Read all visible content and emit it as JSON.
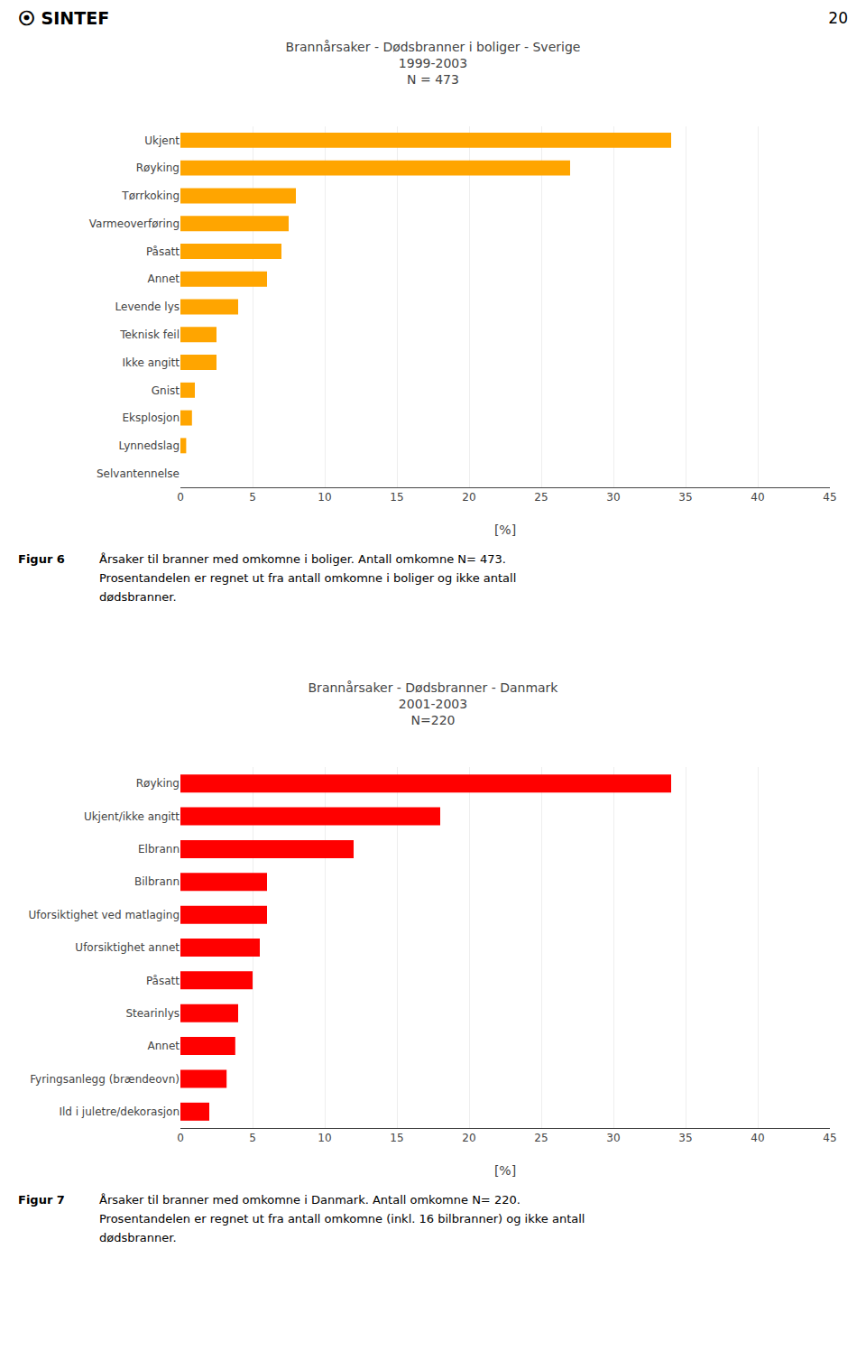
{
  "annotations": [
    "⦿ SINTEF",
    "20"
  ],
  "chart_data": [
    {
      "type": "bar",
      "orientation": "horizontal",
      "title": "Brannårsaker - Dødsbranner i boliger - Sverige\n1999-2003\nN = 473",
      "categories": [
        "Ukjent",
        "Røyking",
        "Tørrkoking",
        "Varmeoverføring",
        "Påsatt",
        "Annet",
        "Levende lys",
        "Teknisk feil",
        "Ikke angitt",
        "Gnist",
        "Eksplosjon",
        "Lynnedslag",
        "Selvantennelse"
      ],
      "values": [
        34,
        27,
        8,
        7.5,
        7,
        6,
        4,
        2.5,
        2.5,
        1,
        0.8,
        0.4,
        0.0
      ],
      "color": "#FFA500",
      "xlabel": "[%]",
      "xlim": [
        0,
        45
      ],
      "xticks": [
        0,
        5,
        10,
        15,
        20,
        25,
        30,
        35,
        40,
        45
      ],
      "grid": true,
      "annotations": [
        "Figur 6",
        "Årsaker til branner med omkomne i boliger. Antall omkomne N= 473.",
        "Prosentandelen er regnet ut fra antall omkomne i boliger og ikke antall",
        "dødsbranner."
      ]
    },
    {
      "type": "bar",
      "orientation": "horizontal",
      "title": "Brannårsaker - Dødsbranner - Danmark\n2001-2003\nN=220",
      "categories": [
        "Røyking",
        "Ukjent/ikke angitt",
        "Elbrann",
        "Bilbrann",
        "Uforsiktighet ved matlaging",
        "Uforsiktighet annet",
        "Påsatt",
        "Stearinlys",
        "Annet",
        "Fyringsanlegg (brændeovn)",
        "Ild i juletre/dekorasjon"
      ],
      "values": [
        34,
        18,
        12,
        6,
        6,
        5.5,
        5,
        4,
        3.8,
        3.2,
        2
      ],
      "color": "#FF0000",
      "xlabel": "[%]",
      "xlim": [
        0,
        45
      ],
      "xticks": [
        0,
        5,
        10,
        15,
        20,
        25,
        30,
        35,
        40,
        45
      ],
      "grid": true,
      "annotations": [
        "Figur 7",
        "Årsaker til branner med omkomne i Danmark. Antall omkomne N= 220.",
        "Prosentandelen er regnet ut fra antall omkomne (inkl. 16 bilbranner) og ikke antall",
        "dødsbranner."
      ]
    }
  ]
}
